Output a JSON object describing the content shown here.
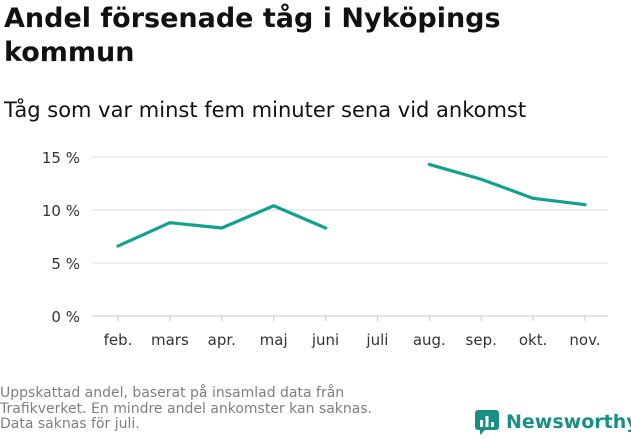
{
  "title": "Andel försenade tåg i Nyköpings kommun",
  "subtitle": "Tåg som var minst fem minuter sena vid ankomst",
  "footnote": [
    "Uppskattad andel, baserat på insamlad data från",
    "Trafikverket. En mindre andel ankomster kan saknas.",
    "Data saknas för juli."
  ],
  "brand": {
    "name": "Newsworthy",
    "icon": "bar-chart-logo-icon",
    "color": "#1a8f86"
  },
  "chart_data": {
    "type": "line",
    "categories": [
      "feb.",
      "mars",
      "apr.",
      "maj",
      "juni",
      "juli",
      "aug.",
      "sep.",
      "okt.",
      "nov."
    ],
    "series": [
      {
        "values": [
          6.6,
          8.8,
          8.3,
          10.4,
          8.3,
          null,
          14.3,
          12.9,
          11.1,
          10.5
        ],
        "color": "#12a08f"
      }
    ],
    "y_ticks": [
      0,
      5,
      10,
      15
    ],
    "y_tick_labels": [
      "0 %",
      "5 %",
      "10 %",
      "15 %"
    ],
    "ylim": [
      0,
      15.5
    ],
    "grid": true,
    "xlabel": "",
    "ylabel": ""
  }
}
